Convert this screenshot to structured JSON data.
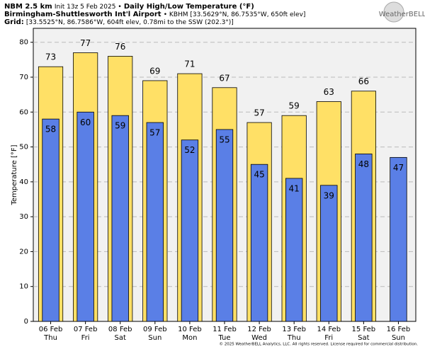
{
  "chart_data": {
    "type": "bar",
    "title_parts": [
      "NBM 2.5 km",
      "Init 13z 5 Feb 2025 •",
      "Daily High/Low Temperature (°F)"
    ],
    "subtitle_parts": [
      "Birmingham-Shuttlesworth Int'l Airport",
      "• KBHM [33.5629°N, 86.7535°W, 650ft elev]"
    ],
    "grid_parts": [
      "Grid:",
      "[33.5525°N, 86.7586°W, 604ft elev, 0.78mi to the SSW (202.3°)]"
    ],
    "logo": "WeatherBELL",
    "footer": "© 2025 WeatherBELL Analytics, LLC. All rights reserved. License required for commercial distribution.",
    "ylabel": "Temperature [°F]",
    "categories": [
      "06 Feb",
      "07 Feb",
      "08 Feb",
      "09 Feb",
      "10 Feb",
      "11 Feb",
      "12 Feb",
      "13 Feb",
      "14 Feb",
      "15 Feb",
      "16 Feb"
    ],
    "weekdays": [
      "Thu",
      "Fri",
      "Sat",
      "Sun",
      "Mon",
      "Tue",
      "Wed",
      "Thu",
      "Fri",
      "Sat",
      "Sun"
    ],
    "series": [
      {
        "color": "#ffe066",
        "values": [
          73,
          77,
          76,
          69,
          71,
          67,
          57,
          59,
          63,
          66,
          null
        ]
      },
      {
        "color": "#5a7fe6",
        "values": [
          58,
          60,
          59,
          57,
          52,
          55,
          45,
          41,
          39,
          48,
          47
        ]
      }
    ],
    "ylim": [
      0,
      84
    ],
    "yticks": [
      0,
      10,
      20,
      30,
      40,
      50,
      60,
      70,
      80
    ],
    "grid": true
  }
}
